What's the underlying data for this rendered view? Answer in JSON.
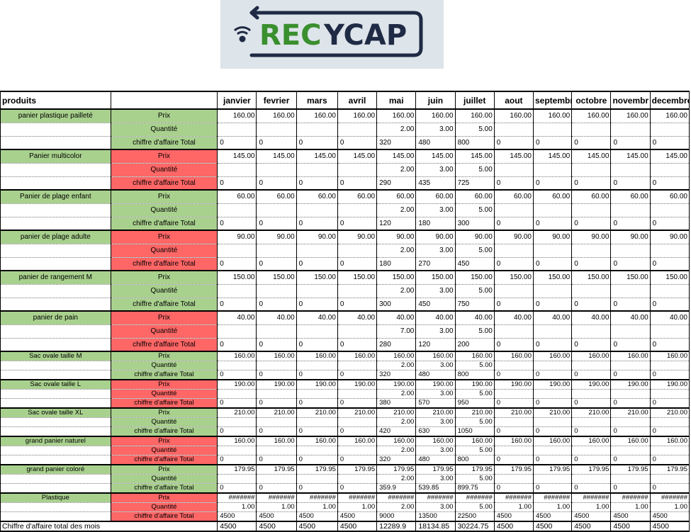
{
  "logo": {
    "text_green": "REC",
    "text_dark": "YCAP",
    "alt": "RECYCAP"
  },
  "header": {
    "produits_label": "produits",
    "months": [
      "janvier",
      "fevrier",
      "mars",
      "avril",
      "mai",
      "juin",
      "juillet",
      "aout",
      "septembr",
      "octobre",
      "novembr",
      "decembre"
    ]
  },
  "row_labels": {
    "prix": "Prix",
    "quantite": "Quantité",
    "ca": "chiffre d'affaire Total"
  },
  "products": [
    {
      "name": "panier plastique pailleté",
      "color": "green",
      "size": "big",
      "prix": [
        "160.00",
        "160.00",
        "160.00",
        "160.00",
        "160.00",
        "160.00",
        "160.00",
        "160.00",
        "160.00",
        "160.00",
        "160.00",
        "160.00"
      ],
      "quantite": [
        "",
        "",
        "",
        "",
        "2.00",
        "3.00",
        "5.00",
        "",
        "",
        "",
        "",
        ""
      ],
      "ca": [
        "0",
        "0",
        "0",
        "0",
        "320",
        "480",
        "800",
        "0",
        "0",
        "0",
        "0",
        "0"
      ]
    },
    {
      "name": "Panier multicolor",
      "color": "red",
      "size": "big",
      "prix": [
        "145.00",
        "145.00",
        "145.00",
        "145.00",
        "145.00",
        "145.00",
        "145.00",
        "145.00",
        "145.00",
        "145.00",
        "145.00",
        "145.00"
      ],
      "quantite": [
        "",
        "",
        "",
        "",
        "2.00",
        "3.00",
        "5.00",
        "",
        "",
        "",
        "",
        ""
      ],
      "ca": [
        "0",
        "0",
        "0",
        "0",
        "290",
        "435",
        "725",
        "0",
        "0",
        "0",
        "0",
        "0"
      ]
    },
    {
      "name": "Panier de plage enfant",
      "color": "green",
      "size": "big",
      "prix": [
        "60.00",
        "60.00",
        "60.00",
        "60.00",
        "60.00",
        "60.00",
        "60.00",
        "60.00",
        "60.00",
        "60.00",
        "60.00",
        "60.00"
      ],
      "quantite": [
        "",
        "",
        "",
        "",
        "2.00",
        "3.00",
        "5.00",
        "",
        "",
        "",
        "",
        ""
      ],
      "ca": [
        "0",
        "0",
        "0",
        "0",
        "120",
        "180",
        "300",
        "0",
        "0",
        "0",
        "0",
        "0"
      ]
    },
    {
      "name": "panier de plage adulte",
      "color": "red",
      "size": "big",
      "prix": [
        "90.00",
        "90.00",
        "90.00",
        "90.00",
        "90.00",
        "90.00",
        "90.00",
        "90.00",
        "90.00",
        "90.00",
        "90.00",
        "90.00"
      ],
      "quantite": [
        "",
        "",
        "",
        "",
        "2.00",
        "3.00",
        "5.00",
        "",
        "",
        "",
        "",
        ""
      ],
      "ca": [
        "0",
        "0",
        "0",
        "0",
        "180",
        "270",
        "450",
        "0",
        "0",
        "0",
        "0",
        "0"
      ]
    },
    {
      "name": "panier de rangement M",
      "color": "green",
      "size": "big",
      "prix": [
        "150.00",
        "150.00",
        "150.00",
        "150.00",
        "150.00",
        "150.00",
        "150.00",
        "150.00",
        "150.00",
        "150.00",
        "150.00",
        "150.00"
      ],
      "quantite": [
        "",
        "",
        "",
        "",
        "2.00",
        "3.00",
        "5.00",
        "",
        "",
        "",
        "",
        ""
      ],
      "ca": [
        "0",
        "0",
        "0",
        "0",
        "300",
        "450",
        "750",
        "0",
        "0",
        "0",
        "0",
        "0"
      ]
    },
    {
      "name": "panier de pain",
      "color": "red",
      "size": "big",
      "prix": [
        "40.00",
        "40.00",
        "40.00",
        "40.00",
        "40.00",
        "40.00",
        "40.00",
        "40.00",
        "40.00",
        "40.00",
        "40.00",
        "40.00"
      ],
      "quantite": [
        "",
        "",
        "",
        "",
        "7.00",
        "3.00",
        "5.00",
        "",
        "",
        "",
        "",
        ""
      ],
      "ca": [
        "0",
        "0",
        "0",
        "0",
        "280",
        "120",
        "200",
        "0",
        "0",
        "0",
        "0",
        "0"
      ]
    },
    {
      "name": "Sac ovale taille M",
      "color": "green",
      "size": "small",
      "prix": [
        "160.00",
        "160.00",
        "160.00",
        "160.00",
        "160.00",
        "160.00",
        "160.00",
        "160.00",
        "160.00",
        "160.00",
        "160.00",
        "160.00"
      ],
      "quantite": [
        "",
        "",
        "",
        "",
        "2.00",
        "3.00",
        "5.00",
        "",
        "",
        "",
        "",
        ""
      ],
      "ca": [
        "0",
        "0",
        "0",
        "0",
        "320",
        "480",
        "800",
        "0",
        "0",
        "0",
        "0",
        "0"
      ]
    },
    {
      "name": "Sac ovale taille L",
      "color": "red",
      "size": "small",
      "prix": [
        "190.00",
        "190.00",
        "190.00",
        "190.00",
        "190.00",
        "190.00",
        "190.00",
        "190.00",
        "190.00",
        "190.00",
        "190.00",
        "190.00"
      ],
      "quantite": [
        "",
        "",
        "",
        "",
        "2.00",
        "3.00",
        "5.00",
        "",
        "",
        "",
        "",
        ""
      ],
      "ca": [
        "0",
        "0",
        "0",
        "0",
        "380",
        "570",
        "950",
        "0",
        "0",
        "0",
        "0",
        "0"
      ]
    },
    {
      "name": "Sac ovale taille XL",
      "color": "green",
      "size": "small",
      "prix": [
        "210.00",
        "210.00",
        "210.00",
        "210.00",
        "210.00",
        "210.00",
        "210.00",
        "210.00",
        "210.00",
        "210.00",
        "210.00",
        "210.00"
      ],
      "quantite": [
        "",
        "",
        "",
        "",
        "2.00",
        "3.00",
        "5.00",
        "",
        "",
        "",
        "",
        ""
      ],
      "ca": [
        "0",
        "0",
        "0",
        "0",
        "420",
        "630",
        "1050",
        "0",
        "0",
        "0",
        "0",
        "0"
      ]
    },
    {
      "name": "grand panier naturel",
      "color": "red",
      "size": "small",
      "prix": [
        "160.00",
        "160.00",
        "160.00",
        "160.00",
        "160.00",
        "160.00",
        "160.00",
        "160.00",
        "160.00",
        "160.00",
        "160.00",
        "160.00"
      ],
      "quantite": [
        "",
        "",
        "",
        "",
        "2.00",
        "3.00",
        "5.00",
        "",
        "",
        "",
        "",
        ""
      ],
      "ca": [
        "0",
        "0",
        "0",
        "0",
        "320",
        "480",
        "800",
        "0",
        "0",
        "0",
        "0",
        "0"
      ]
    },
    {
      "name": "grand panier coloré",
      "color": "green",
      "size": "small",
      "prix": [
        "179.95",
        "179.95",
        "179.95",
        "179.95",
        "179.95",
        "179.95",
        "179.95",
        "179.95",
        "179.95",
        "179.95",
        "179.95",
        "179.95"
      ],
      "quantite": [
        "",
        "",
        "",
        "",
        "2.00",
        "3.00",
        "5.00",
        "",
        "",
        "",
        "",
        ""
      ],
      "ca": [
        "0",
        "0",
        "0",
        "0",
        "359.9",
        "539.85",
        "899.75",
        "0",
        "0",
        "0",
        "0",
        "0"
      ]
    },
    {
      "name": "Plastique",
      "color": "red",
      "size": "small",
      "prix": [
        "#######",
        "#######",
        "#######",
        "#######",
        "#######",
        "#######",
        "#######",
        "#######",
        "#######",
        "#######",
        "#######",
        "#######"
      ],
      "quantite": [
        "1.00",
        "1.00",
        "1.00",
        "1.00",
        "2.00",
        "3.00",
        "5.00",
        "1.00",
        "1.00",
        "1.00",
        "1.00",
        "1.00"
      ],
      "ca": [
        "4500",
        "4500",
        "4500",
        "4500",
        "9000",
        "13500",
        "22500",
        "4500",
        "4500",
        "4500",
        "4500",
        "4500"
      ]
    }
  ],
  "grand_total": {
    "label": "Chiffre d'affaire total des mois",
    "values": [
      "4500",
      "4500",
      "4500",
      "4500",
      "12289.9",
      "18134.85",
      "30224.75",
      "4500",
      "4500",
      "4500",
      "4500",
      "4500"
    ]
  }
}
